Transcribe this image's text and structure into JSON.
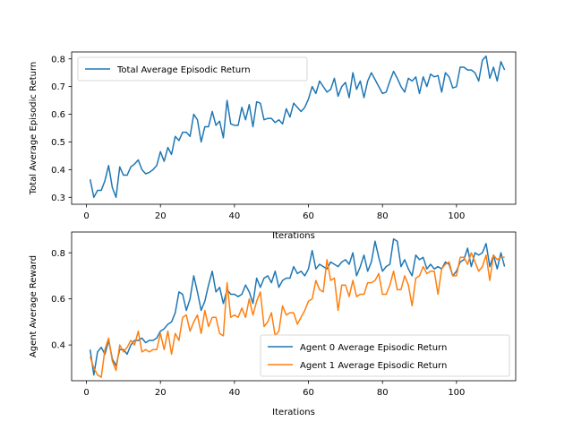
{
  "chart_data": [
    {
      "type": "line",
      "title": "",
      "xlabel": "Iterations",
      "ylabel": "Total Average Episodic Return",
      "xlim": [
        -4,
        116
      ],
      "ylim": [
        0.275,
        0.825
      ],
      "xticks": [
        0,
        20,
        40,
        60,
        80,
        100
      ],
      "yticks": [
        0.3,
        0.4,
        0.5,
        0.6,
        0.7,
        0.8
      ],
      "legend": "upper-left",
      "grid": false,
      "series": [
        {
          "name": "Total Average Episodic Return",
          "color": "#1f77b4",
          "x_start": 1,
          "values": [
            0.365,
            0.3,
            0.325,
            0.325,
            0.36,
            0.415,
            0.335,
            0.3,
            0.41,
            0.38,
            0.38,
            0.41,
            0.42,
            0.435,
            0.4,
            0.385,
            0.39,
            0.4,
            0.415,
            0.465,
            0.43,
            0.48,
            0.455,
            0.52,
            0.505,
            0.535,
            0.535,
            0.52,
            0.6,
            0.58,
            0.5,
            0.555,
            0.555,
            0.61,
            0.56,
            0.575,
            0.515,
            0.65,
            0.565,
            0.56,
            0.56,
            0.625,
            0.58,
            0.635,
            0.555,
            0.645,
            0.64,
            0.58,
            0.585,
            0.585,
            0.57,
            0.58,
            0.565,
            0.62,
            0.59,
            0.64,
            0.625,
            0.61,
            0.625,
            0.655,
            0.7,
            0.675,
            0.72,
            0.7,
            0.68,
            0.69,
            0.73,
            0.665,
            0.7,
            0.715,
            0.66,
            0.75,
            0.69,
            0.72,
            0.66,
            0.72,
            0.75,
            0.725,
            0.7,
            0.675,
            0.68,
            0.72,
            0.755,
            0.73,
            0.7,
            0.68,
            0.73,
            0.72,
            0.735,
            0.675,
            0.735,
            0.7,
            0.745,
            0.735,
            0.74,
            0.68,
            0.75,
            0.735,
            0.695,
            0.7,
            0.77,
            0.77,
            0.76,
            0.76,
            0.75,
            0.72,
            0.795,
            0.81,
            0.73,
            0.77,
            0.72,
            0.79,
            0.76
          ]
        }
      ]
    },
    {
      "type": "line",
      "title": "",
      "xlabel": "Iterations",
      "ylabel": "Agent Average Reward",
      "xlim": [
        -4,
        116
      ],
      "ylim": [
        0.245,
        0.89
      ],
      "xticks": [
        0,
        20,
        40,
        60,
        80,
        100
      ],
      "yticks": [
        0.4,
        0.6,
        0.8
      ],
      "legend": "lower-right",
      "grid": false,
      "series": [
        {
          "name": "Agent 0 Average Episodic Return",
          "color": "#1f77b4",
          "x_start": 1,
          "values": [
            0.38,
            0.27,
            0.37,
            0.39,
            0.36,
            0.42,
            0.34,
            0.31,
            0.38,
            0.38,
            0.36,
            0.4,
            0.42,
            0.42,
            0.43,
            0.41,
            0.42,
            0.42,
            0.43,
            0.46,
            0.47,
            0.49,
            0.5,
            0.54,
            0.63,
            0.62,
            0.55,
            0.6,
            0.7,
            0.63,
            0.55,
            0.59,
            0.66,
            0.72,
            0.63,
            0.65,
            0.58,
            0.64,
            0.62,
            0.62,
            0.61,
            0.62,
            0.66,
            0.63,
            0.58,
            0.69,
            0.65,
            0.69,
            0.7,
            0.67,
            0.72,
            0.65,
            0.68,
            0.69,
            0.69,
            0.74,
            0.71,
            0.72,
            0.7,
            0.73,
            0.81,
            0.73,
            0.75,
            0.74,
            0.73,
            0.76,
            0.75,
            0.74,
            0.76,
            0.77,
            0.75,
            0.8,
            0.7,
            0.74,
            0.79,
            0.72,
            0.76,
            0.85,
            0.78,
            0.72,
            0.74,
            0.75,
            0.86,
            0.85,
            0.74,
            0.77,
            0.73,
            0.7,
            0.79,
            0.77,
            0.78,
            0.73,
            0.75,
            0.73,
            0.74,
            0.73,
            0.76,
            0.75,
            0.7,
            0.72,
            0.76,
            0.77,
            0.82,
            0.74,
            0.8,
            0.79,
            0.8,
            0.84,
            0.74,
            0.79,
            0.73,
            0.8,
            0.74
          ]
        },
        {
          "name": "Agent 1 Average Episodic Return",
          "color": "#ff7f0e",
          "x_start": 1,
          "values": [
            0.35,
            0.3,
            0.27,
            0.26,
            0.38,
            0.43,
            0.33,
            0.29,
            0.4,
            0.37,
            0.39,
            0.42,
            0.4,
            0.46,
            0.37,
            0.38,
            0.37,
            0.38,
            0.38,
            0.45,
            0.38,
            0.46,
            0.36,
            0.45,
            0.42,
            0.52,
            0.53,
            0.46,
            0.5,
            0.53,
            0.45,
            0.55,
            0.48,
            0.52,
            0.52,
            0.45,
            0.44,
            0.67,
            0.52,
            0.53,
            0.52,
            0.56,
            0.52,
            0.6,
            0.53,
            0.59,
            0.63,
            0.48,
            0.5,
            0.54,
            0.44,
            0.46,
            0.57,
            0.53,
            0.54,
            0.54,
            0.49,
            0.52,
            0.55,
            0.59,
            0.6,
            0.68,
            0.64,
            0.63,
            0.77,
            0.68,
            0.69,
            0.55,
            0.66,
            0.66,
            0.61,
            0.68,
            0.61,
            0.62,
            0.62,
            0.67,
            0.67,
            0.68,
            0.71,
            0.62,
            0.62,
            0.66,
            0.72,
            0.64,
            0.64,
            0.7,
            0.66,
            0.57,
            0.69,
            0.7,
            0.74,
            0.71,
            0.72,
            0.72,
            0.62,
            0.73,
            0.75,
            0.76,
            0.7,
            0.7,
            0.78,
            0.78,
            0.75,
            0.8,
            0.76,
            0.72,
            0.74,
            0.79,
            0.68,
            0.79,
            0.77,
            0.78,
            0.78
          ]
        }
      ]
    }
  ]
}
